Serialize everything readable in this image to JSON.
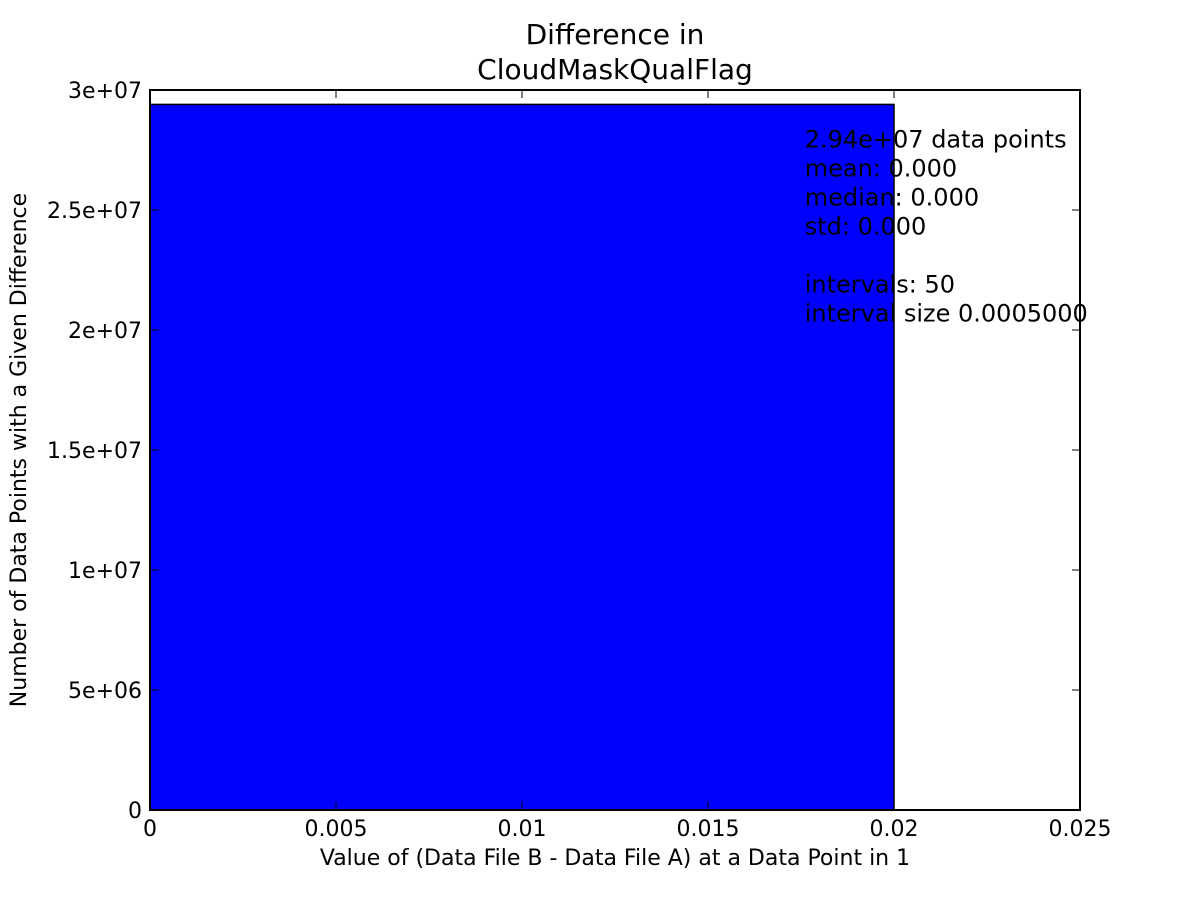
{
  "chart_data": {
    "type": "bar",
    "title_lines": [
      "Difference in",
      "CloudMaskQualFlag"
    ],
    "xlabel": "Value of (Data File B - Data File A) at a Data Point in 1",
    "ylabel": "Number of Data Points with a Given Difference",
    "xlim": [
      0,
      0.025
    ],
    "ylim": [
      0,
      30000000
    ],
    "x_ticks": [
      0,
      0.005,
      0.01,
      0.015,
      0.02,
      0.025
    ],
    "x_tick_labels": [
      "0",
      "0.005",
      "0.01",
      "0.015",
      "0.02",
      "0.025"
    ],
    "y_ticks": [
      0,
      5000000,
      10000000,
      15000000,
      20000000,
      25000000,
      30000000
    ],
    "y_tick_labels": [
      "0",
      "5e+06",
      "1e+07",
      "1.5e+07",
      "2e+07",
      "2.5e+07",
      "3e+07"
    ],
    "bars": [
      {
        "x0": 0,
        "x1": 0.02,
        "value": 29400000
      }
    ],
    "bar_color": "#0000ff",
    "grid": false,
    "stats_text": [
      "2.94e+07 data points",
      "mean: 0.000",
      "median: 0.000",
      "std: 0.000",
      "",
      "intervals: 50",
      "interval size 0.0005000"
    ],
    "stats_anchor_x": 0.0176,
    "stats_anchor_y": 27600000
  }
}
